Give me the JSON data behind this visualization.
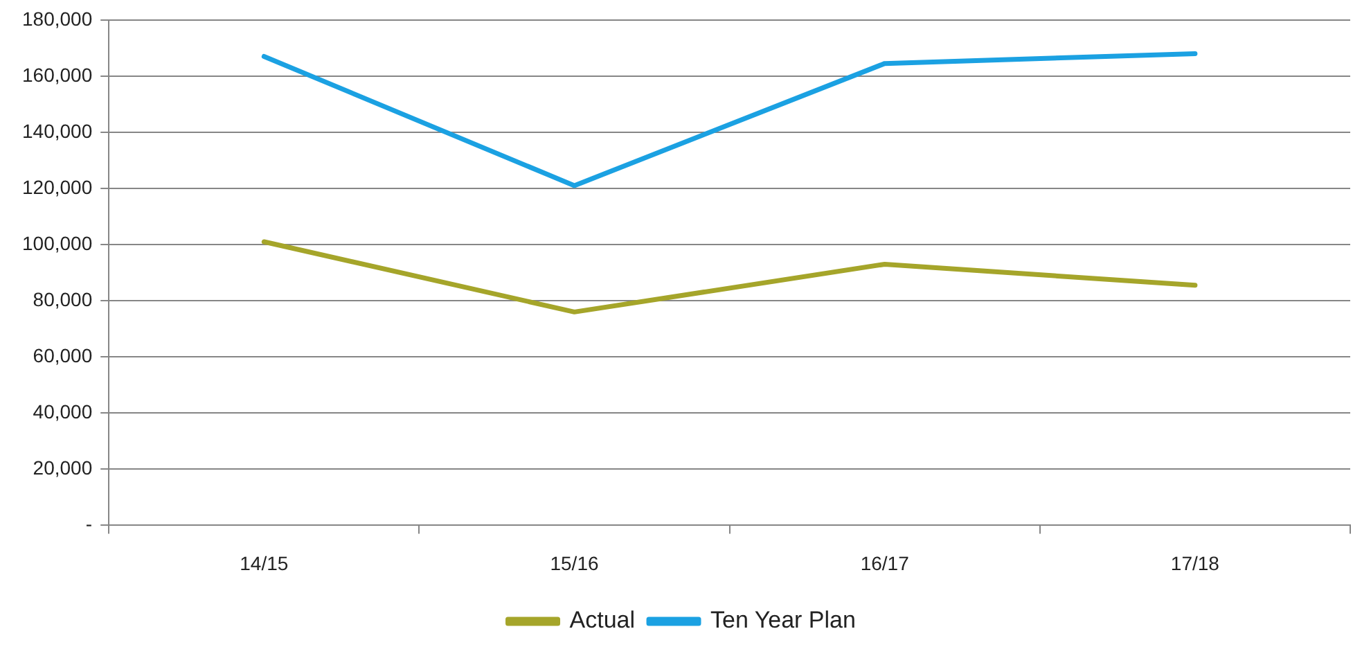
{
  "chart_data": {
    "type": "line",
    "categories": [
      "14/15",
      "15/16",
      "16/17",
      "17/18"
    ],
    "series": [
      {
        "name": "Actual",
        "color": "#a5a52a",
        "values": [
          101000,
          76000,
          93000,
          85500
        ]
      },
      {
        "name": "Ten Year Plan",
        "color": "#1ba1e2",
        "values": [
          167000,
          121000,
          164500,
          168000
        ]
      }
    ],
    "ylim": [
      0,
      180000
    ],
    "yticks": [
      {
        "value": 0,
        "label": "-"
      },
      {
        "value": 20000,
        "label": "20,000"
      },
      {
        "value": 40000,
        "label": "40,000"
      },
      {
        "value": 60000,
        "label": "60,000"
      },
      {
        "value": 80000,
        "label": "80,000"
      },
      {
        "value": 100000,
        "label": "100,000"
      },
      {
        "value": 120000,
        "label": "120,000"
      },
      {
        "value": 140000,
        "label": "140,000"
      },
      {
        "value": 160000,
        "label": "160,000"
      },
      {
        "value": 180000,
        "label": "180,000"
      }
    ],
    "grid": "y",
    "legend": "bottom",
    "marker": "none",
    "line_style": "solid"
  }
}
